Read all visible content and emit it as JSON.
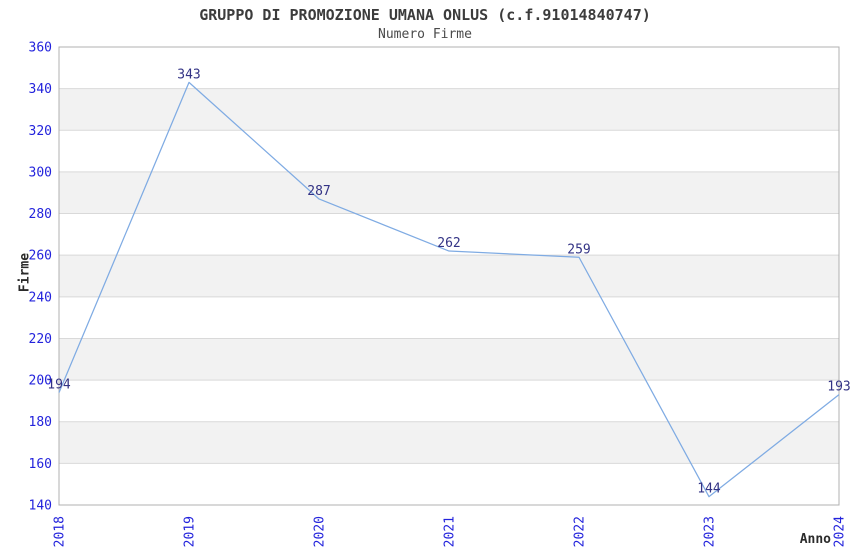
{
  "chart_data": {
    "type": "line",
    "title": "GRUPPO DI PROMOZIONE UMANA ONLUS (c.f.91014840747)",
    "subtitle": "Numero Firme",
    "xlabel": "Anno",
    "ylabel": "Firme",
    "x": [
      "2018",
      "2019",
      "2020",
      "2021",
      "2022",
      "2023",
      "2024"
    ],
    "series": [
      {
        "name": "Numero Firme",
        "values": [
          194,
          343,
          287,
          262,
          259,
          144,
          193
        ]
      }
    ],
    "ylim": [
      140,
      360
    ],
    "ytick_step": 20,
    "grid": "horizontal",
    "band_fill": "alternating",
    "legend_position": "none",
    "show_data_labels": true,
    "colors": {
      "line": "#7fabe3",
      "tick_label": "#2323dc",
      "data_label": "#333385",
      "band": "#f2f2f2",
      "gridline": "#d9d9d9",
      "plot_border": "#b0b0b0",
      "title": "#3c3c3c",
      "subtitle": "#4a4a4a",
      "axis_title": "#2b2b2b",
      "background": "#ffffff"
    }
  }
}
